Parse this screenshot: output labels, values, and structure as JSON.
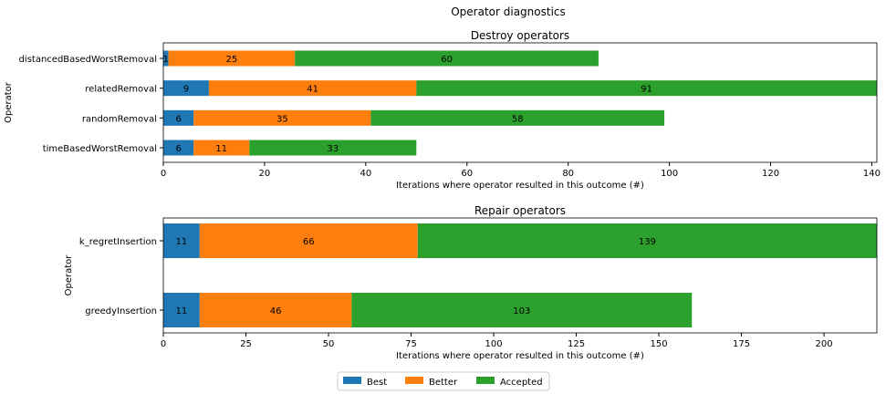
{
  "suptitle": "Operator diagnostics",
  "colors": {
    "Best": "#1f77b4",
    "Better": "#ff7f0e",
    "Accepted": "#2ca02c"
  },
  "legend": {
    "placement": "bottom-center",
    "entries": [
      "Best",
      "Better",
      "Accepted"
    ]
  },
  "chart_data": [
    {
      "type": "bar",
      "orientation": "horizontal",
      "stacked": true,
      "title": "Destroy operators",
      "xlabel": "Iterations where operator resulted in this outcome (#)",
      "ylabel": "Operator",
      "xlim": [
        0,
        141
      ],
      "xticks": [
        0,
        20,
        40,
        60,
        80,
        100,
        120,
        140
      ],
      "categories": [
        "distancedBasedWorstRemoval",
        "relatedRemoval",
        "randomRemoval",
        "timeBasedWorstRemoval"
      ],
      "series": [
        {
          "name": "Best",
          "values": [
            1,
            9,
            6,
            6
          ]
        },
        {
          "name": "Better",
          "values": [
            25,
            41,
            35,
            11
          ]
        },
        {
          "name": "Accepted",
          "values": [
            60,
            91,
            58,
            33
          ]
        }
      ]
    },
    {
      "type": "bar",
      "orientation": "horizontal",
      "stacked": true,
      "title": "Repair operators",
      "xlabel": "Iterations where operator resulted in this outcome (#)",
      "ylabel": "Operator",
      "xlim": [
        0,
        216
      ],
      "xticks": [
        0,
        25,
        50,
        75,
        100,
        125,
        150,
        175,
        200
      ],
      "categories": [
        "k_regretInsertion",
        "greedyInsertion"
      ],
      "series": [
        {
          "name": "Best",
          "values": [
            11,
            11
          ]
        },
        {
          "name": "Better",
          "values": [
            66,
            46
          ]
        },
        {
          "name": "Accepted",
          "values": [
            139,
            103
          ]
        }
      ]
    }
  ]
}
